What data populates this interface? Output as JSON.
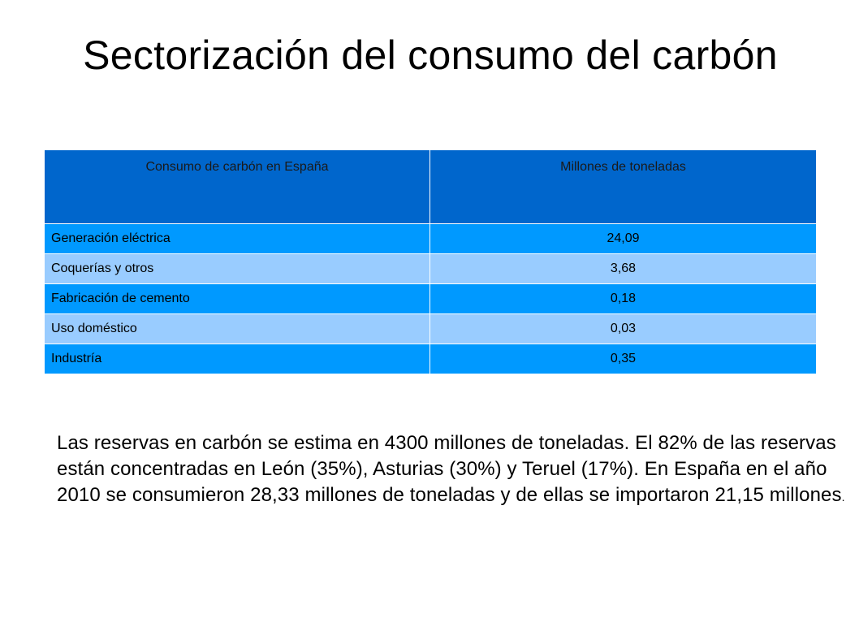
{
  "slide": {
    "title": "Sectorización del consumo del carbón"
  },
  "table": {
    "headers": [
      "Consumo de carbón en España",
      "Millones de toneladas"
    ],
    "rows": [
      {
        "sector": "Generación eléctrica",
        "value": "24,09"
      },
      {
        "sector": "Coquerías y otros",
        "value": "3,68"
      },
      {
        "sector": "Fabricación de cemento",
        "value": "0,18"
      },
      {
        "sector": "Uso doméstico",
        "value": "0,03"
      },
      {
        "sector": "Industría",
        "value": "0,35"
      }
    ],
    "colors": {
      "header_bg": "#0066cc",
      "row_dark_bg": "#0099ff",
      "row_light_bg": "#99ccff"
    }
  },
  "body": {
    "paragraph": "Las reservas en carbón se estima en 4300 millones de toneladas. El 82% de las reservas están concentradas en León (35%), Asturias (30%) y Teruel (17%). En España en el año 2010 se consumieron 28,33 millones de toneladas y de ellas se importaron 21,15 millones",
    "final_punctuation": "."
  }
}
